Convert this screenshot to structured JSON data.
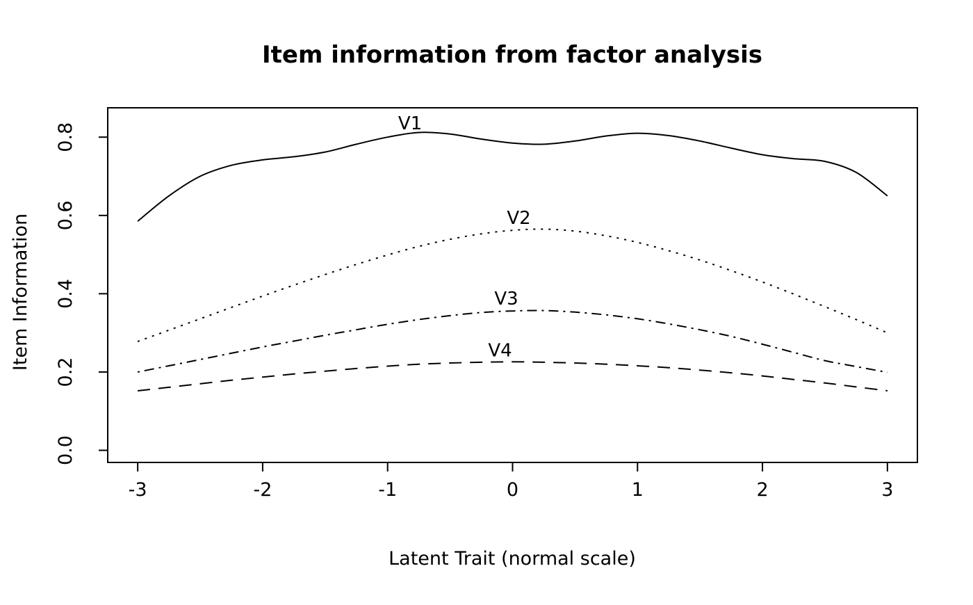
{
  "figure": {
    "background": "#ffffff",
    "foreground": "#000000"
  },
  "chart_data": {
    "type": "line",
    "title": "Item information from factor analysis",
    "xlabel": "Latent Trait (normal scale)",
    "ylabel": "Item Information",
    "xlim": [
      -3.24,
      3.24
    ],
    "ylim": [
      -0.031,
      0.875
    ],
    "grid": false,
    "legend": "inline-labels-above-curves",
    "x_ticks": {
      "values": [
        -3,
        -2,
        -1,
        0,
        1,
        2,
        3
      ],
      "labels": [
        "-3",
        "-2",
        "-1",
        "0",
        "1",
        "2",
        "3"
      ]
    },
    "y_ticks": {
      "values": [
        0.0,
        0.2,
        0.4,
        0.6,
        0.8
      ],
      "labels": [
        "0.0",
        "0.2",
        "0.4",
        "0.6",
        "0.8"
      ]
    },
    "x": [
      -3,
      -2.75,
      -2.5,
      -2.25,
      -2,
      -1.75,
      -1.5,
      -1.25,
      -1,
      -0.75,
      -0.5,
      -0.25,
      0,
      0.25,
      0.5,
      0.75,
      1,
      1.25,
      1.5,
      1.75,
      2,
      2.25,
      2.5,
      2.75,
      3
    ],
    "series": [
      {
        "name": "V1",
        "linetype": "solid",
        "label_pos": {
          "x": -0.82,
          "y": 0.82
        },
        "values": [
          0.585,
          0.65,
          0.7,
          0.728,
          0.742,
          0.75,
          0.762,
          0.782,
          0.8,
          0.812,
          0.808,
          0.795,
          0.785,
          0.782,
          0.79,
          0.803,
          0.81,
          0.804,
          0.79,
          0.772,
          0.755,
          0.745,
          0.738,
          0.71,
          0.65
        ]
      },
      {
        "name": "V2",
        "linetype": "dotted",
        "label_pos": {
          "x": 0.05,
          "y": 0.578
        },
        "values": [
          0.278,
          0.307,
          0.336,
          0.365,
          0.394,
          0.422,
          0.449,
          0.475,
          0.499,
          0.521,
          0.539,
          0.553,
          0.562,
          0.565,
          0.56,
          0.548,
          0.531,
          0.51,
          0.486,
          0.459,
          0.43,
          0.399,
          0.367,
          0.334,
          0.3
        ]
      },
      {
        "name": "V3",
        "linetype": "dotdash",
        "label_pos": {
          "x": -0.05,
          "y": 0.372
        },
        "values": [
          0.2,
          0.216,
          0.232,
          0.248,
          0.264,
          0.279,
          0.294,
          0.308,
          0.322,
          0.334,
          0.344,
          0.352,
          0.356,
          0.357,
          0.353,
          0.346,
          0.336,
          0.323,
          0.308,
          0.291,
          0.271,
          0.25,
          0.229,
          0.214,
          0.199
        ]
      },
      {
        "name": "V4",
        "linetype": "dashed",
        "label_pos": {
          "x": -0.1,
          "y": 0.24
        },
        "values": [
          0.152,
          0.161,
          0.17,
          0.179,
          0.187,
          0.195,
          0.202,
          0.209,
          0.215,
          0.22,
          0.223,
          0.225,
          0.226,
          0.225,
          0.223,
          0.22,
          0.216,
          0.211,
          0.205,
          0.198,
          0.19,
          0.181,
          0.172,
          0.162,
          0.152
        ]
      }
    ]
  }
}
